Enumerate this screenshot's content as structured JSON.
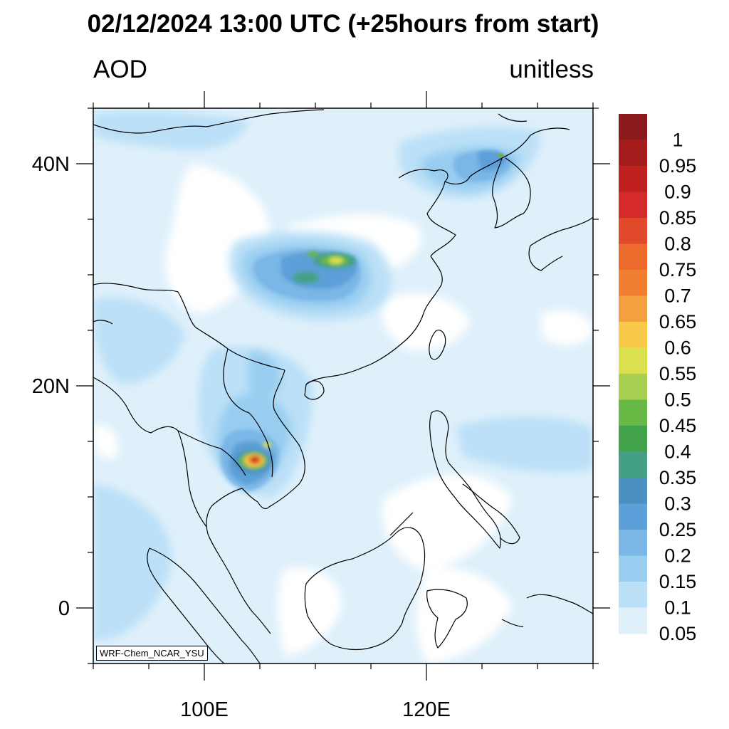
{
  "header": {
    "title": "02/12/2024 13:00 UTC (+25hours from start)",
    "left_label": "AOD",
    "right_label": "unitless"
  },
  "model_tag": "WRF-Chem_NCAR_YSU",
  "axes": {
    "lon_range": [
      90,
      135
    ],
    "lat_range": [
      -5,
      45
    ],
    "x_tick_labels": [
      {
        "lon": 100,
        "text": "100E"
      },
      {
        "lon": 120,
        "text": "120E"
      }
    ],
    "y_tick_labels": [
      {
        "lat": 40,
        "text": "40N"
      },
      {
        "lat": 20,
        "text": "20N"
      },
      {
        "lat": 0,
        "text": "0"
      }
    ],
    "minor_lon_ticks": [
      90,
      95,
      100,
      105,
      110,
      115,
      120,
      125,
      130,
      135
    ],
    "minor_lat_ticks": [
      -5,
      0,
      5,
      10,
      15,
      20,
      25,
      30,
      35,
      40,
      45
    ]
  },
  "colorbar": {
    "labels": [
      "1",
      "0.95",
      "0.9",
      "0.85",
      "0.8",
      "0.75",
      "0.7",
      "0.65",
      "0.6",
      "0.55",
      "0.5",
      "0.45",
      "0.4",
      "0.35",
      "0.3",
      "0.25",
      "0.2",
      "0.15",
      "0.1",
      "0.05"
    ],
    "colors_top_to_bottom": [
      "#8b1a1a",
      "#a51c1c",
      "#bf2020",
      "#d42a2a",
      "#e04a2a",
      "#ec6a2c",
      "#f08030",
      "#f5a040",
      "#f9c94c",
      "#dbe04f",
      "#a8cf4f",
      "#68b845",
      "#42a34a",
      "#44a085",
      "#4a90c0",
      "#5d9fd8",
      "#7ab6e6",
      "#98cdf0",
      "#bbe0f7",
      "#dff0fb"
    ]
  },
  "features": {
    "haze_base_color": "#dff0fb",
    "coastline_color": "#000000",
    "hotspots": [
      {
        "name": "central-china",
        "lon": 109.5,
        "lat": 31.0,
        "peak_aod": 0.6
      },
      {
        "name": "cambodia-laos",
        "lon": 104.0,
        "lat": 13.0,
        "peak_aod": 0.95
      },
      {
        "name": "north-china-korea",
        "lon": 125.0,
        "lat": 40.5,
        "peak_aod": 0.4
      }
    ]
  }
}
